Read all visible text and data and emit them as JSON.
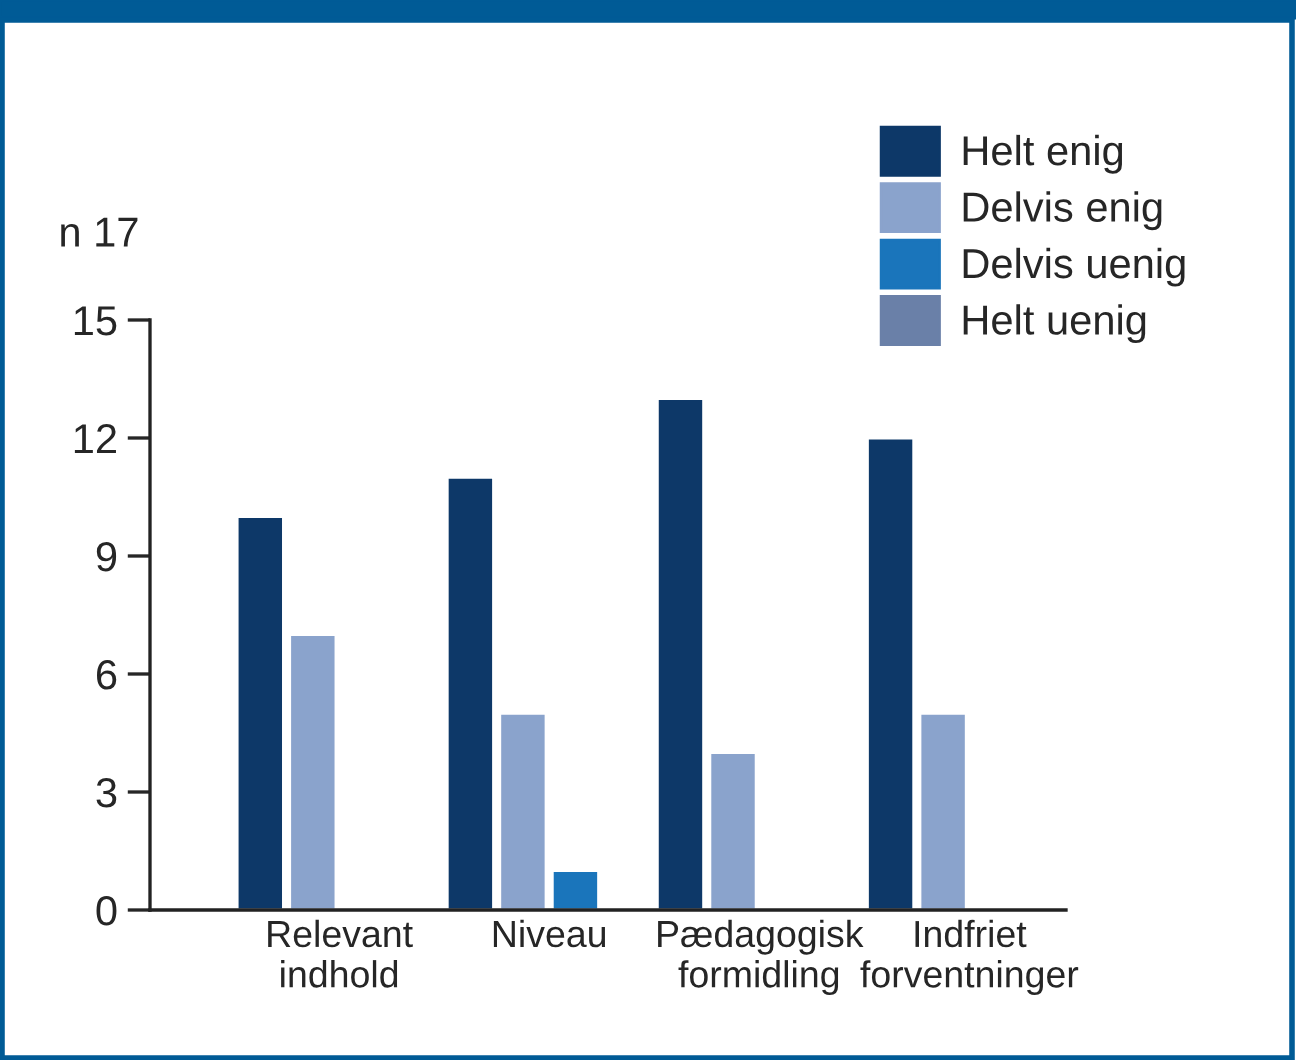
{
  "chart_data": {
    "type": "bar",
    "ylabel": "n 17",
    "categories": [
      "Relevant\nindhold",
      "Niveau",
      "Pædagogisk\nformidling",
      "Indfriet\nforventninger"
    ],
    "series": [
      {
        "name": "Helt enig",
        "color": "#0d3868",
        "values": [
          10,
          11,
          13,
          12
        ]
      },
      {
        "name": "Delvis enig",
        "color": "#8aa3cc",
        "values": [
          7,
          5,
          4,
          5
        ]
      },
      {
        "name": "Delvis uenig",
        "color": "#1a75bb",
        "values": [
          null,
          1,
          null,
          null
        ]
      },
      {
        "name": "Helt uenig",
        "color": "#6a80a8",
        "values": [
          null,
          null,
          null,
          null
        ]
      }
    ],
    "ylim": [
      0,
      15
    ],
    "yticks": [
      0,
      3,
      6,
      9,
      12,
      15
    ],
    "grid": false,
    "legend": "top right"
  }
}
